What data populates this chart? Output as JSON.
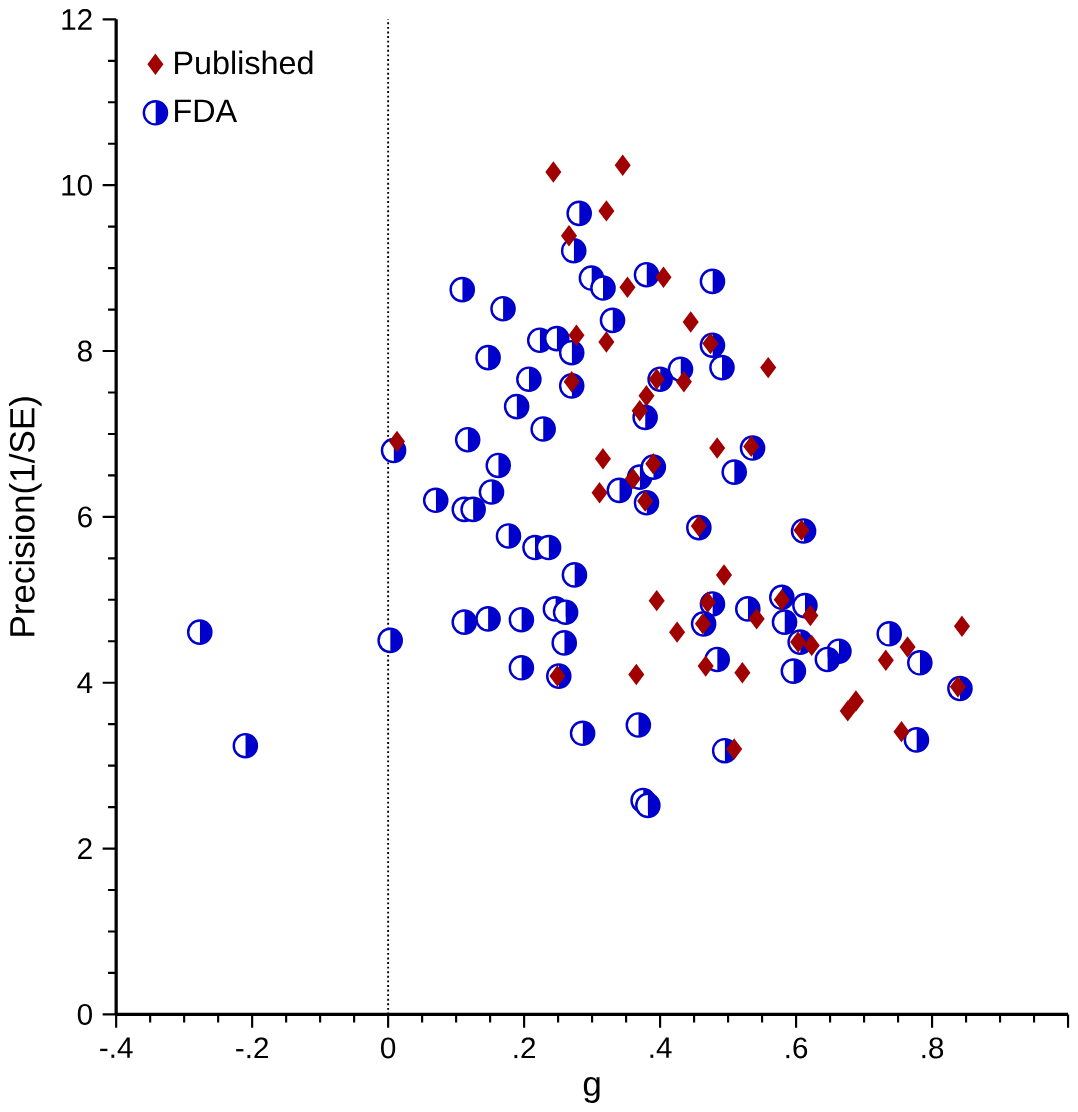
{
  "chart_data": {
    "type": "scatter",
    "xlabel": "g",
    "ylabel": "Precision(1/SE)",
    "xlim": [
      -0.4,
      1.0
    ],
    "ylim": [
      0,
      12
    ],
    "xticks": [
      {
        "value": -0.4,
        "label": "-.4"
      },
      {
        "value": -0.2,
        "label": "-.2"
      },
      0,
      {
        "value": 0.2,
        "label": ".2"
      },
      {
        "value": 0.4,
        "label": ".4"
      },
      {
        "value": 0.6,
        "label": ".6"
      },
      {
        "value": 0.8,
        "label": ".8"
      },
      {
        "value": 1.0,
        "label": null
      }
    ],
    "yticks": [
      0,
      2,
      4,
      6,
      8,
      10,
      12
    ],
    "grid": false,
    "legend": "top left",
    "ref_lines": [
      {
        "axis": "x",
        "value": 0,
        "line_style": "dotted",
        "color": "#000000"
      }
    ],
    "series": [
      {
        "name": "Published",
        "color": "#a00000",
        "marker": "diamond",
        "x": [
          0.243,
          0.345,
          0.321,
          0.266,
          0.405,
          0.352,
          0.445,
          0.277,
          0.321,
          0.474,
          0.559,
          0.395,
          0.435,
          0.27,
          0.38,
          0.37,
          0.316,
          0.484,
          0.534,
          0.36,
          0.39,
          0.311,
          0.378,
          0.457,
          0.608,
          0.013,
          0.494,
          0.395,
          0.425,
          0.365,
          0.47,
          0.463,
          0.542,
          0.579,
          0.621,
          0.467,
          0.521,
          0.603,
          0.623,
          0.764,
          0.732,
          0.844,
          0.838,
          0.688,
          0.676,
          0.755,
          0.509,
          0.249
        ],
        "values": [
          10.16,
          10.24,
          9.69,
          9.39,
          8.89,
          8.77,
          8.35,
          8.19,
          8.11,
          8.09,
          7.8,
          7.66,
          7.63,
          7.63,
          7.46,
          7.28,
          6.7,
          6.83,
          6.85,
          6.46,
          6.64,
          6.29,
          6.19,
          5.89,
          5.84,
          6.91,
          5.3,
          4.99,
          4.61,
          4.1,
          4.97,
          4.71,
          4.77,
          5.0,
          4.81,
          4.2,
          4.12,
          4.49,
          4.45,
          4.43,
          4.27,
          4.68,
          3.95,
          3.78,
          3.66,
          3.41,
          3.2,
          4.08
        ]
      },
      {
        "name": "FDA",
        "color": "#0000cc",
        "marker": "circle",
        "x": [
          0.281,
          0.273,
          0.299,
          0.316,
          0.38,
          0.477,
          0.33,
          0.109,
          0.169,
          0.223,
          0.248,
          0.27,
          0.147,
          0.207,
          0.27,
          0.189,
          0.228,
          0.117,
          0.008,
          0.162,
          0.152,
          0.07,
          0.112,
          0.125,
          0.177,
          0.216,
          0.236,
          0.477,
          0.491,
          0.43,
          0.4,
          0.378,
          0.536,
          0.509,
          0.34,
          0.37,
          0.39,
          0.38,
          0.457,
          0.611,
          -0.277,
          -0.21,
          0.003,
          0.112,
          0.147,
          0.196,
          0.246,
          0.261,
          0.259,
          0.196,
          0.251,
          0.274,
          0.286,
          0.368,
          0.375,
          0.382,
          0.477,
          0.464,
          0.529,
          0.579,
          0.613,
          0.583,
          0.484,
          0.606,
          0.663,
          0.646,
          0.596,
          0.737,
          0.782,
          0.841,
          0.777,
          0.495
        ],
        "values": [
          9.66,
          9.21,
          8.88,
          8.76,
          8.92,
          8.84,
          8.37,
          8.74,
          8.51,
          8.13,
          8.15,
          7.98,
          7.92,
          7.66,
          7.58,
          7.33,
          7.06,
          6.93,
          6.8,
          6.62,
          6.3,
          6.2,
          6.09,
          6.09,
          5.77,
          5.63,
          5.63,
          8.07,
          7.8,
          7.78,
          7.66,
          7.2,
          6.83,
          6.54,
          6.32,
          6.48,
          6.6,
          6.17,
          5.87,
          5.83,
          4.61,
          3.24,
          4.51,
          4.73,
          4.77,
          4.76,
          4.89,
          4.85,
          4.48,
          4.18,
          4.08,
          5.3,
          3.39,
          3.49,
          2.58,
          2.52,
          4.95,
          4.71,
          4.89,
          5.03,
          4.93,
          4.73,
          4.28,
          4.49,
          4.38,
          4.28,
          4.14,
          4.59,
          4.24,
          3.93,
          3.31,
          3.18
        ]
      }
    ]
  }
}
